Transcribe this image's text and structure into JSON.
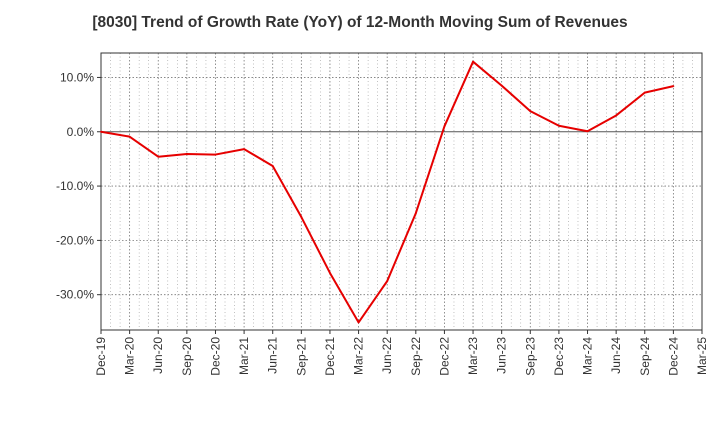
{
  "title": "[8030]  Trend of Growth Rate (YoY) of 12-Month Moving Sum of Revenues",
  "chart_data": {
    "type": "line",
    "title": "[8030]  Trend of Growth Rate (YoY) of 12-Month Moving Sum of Revenues",
    "xlabel": "",
    "ylabel": "",
    "ylim": [
      -36.5,
      14.5
    ],
    "yticks": [
      10,
      0,
      -10,
      -20,
      -30
    ],
    "ytick_labels": [
      "10.0%",
      "0.0%",
      "-10.0%",
      "-20.0%",
      "-30.0%"
    ],
    "x_tick_labels": [
      "Dec-19",
      "Mar-20",
      "Jun-20",
      "Sep-20",
      "Dec-20",
      "Mar-21",
      "Jun-21",
      "Sep-21",
      "Dec-21",
      "Mar-22",
      "Jun-22",
      "Sep-22",
      "Dec-22",
      "Mar-23",
      "Jun-23",
      "Sep-23",
      "Dec-23",
      "Mar-24",
      "Jun-24",
      "Sep-24",
      "Dec-24",
      "Mar-25"
    ],
    "grid": true,
    "series": [
      {
        "color": "#e60000",
        "x": [
          "Dec-19",
          "Mar-20",
          "Jun-20",
          "Sep-20",
          "Dec-20",
          "Mar-21",
          "Jun-21",
          "Sep-21",
          "Dec-21",
          "Mar-22",
          "Jun-22",
          "Sep-22",
          "Dec-22",
          "Mar-23",
          "Jun-23",
          "Sep-23",
          "Dec-23",
          "Mar-24",
          "Jun-24",
          "Sep-24",
          "Dec-24"
        ],
        "values": [
          0.0,
          -0.9,
          -4.6,
          -4.1,
          -4.2,
          -3.2,
          -6.3,
          -15.7,
          -26.0,
          -35.1,
          -27.5,
          -15.0,
          1.0,
          12.9,
          8.5,
          3.8,
          1.1,
          0.1,
          3.0,
          7.2,
          8.4
        ]
      }
    ]
  }
}
